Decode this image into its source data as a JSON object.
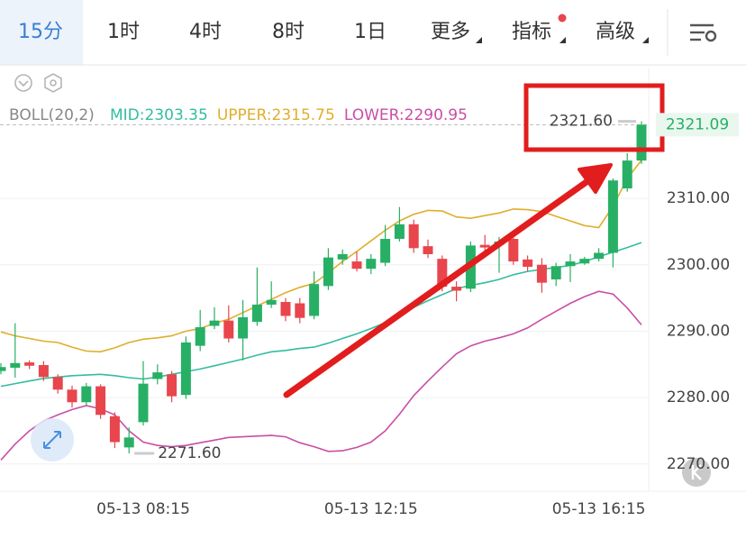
{
  "tabs": [
    "15分",
    "1时",
    "4时",
    "8时",
    "1日",
    "更多",
    "指标",
    "高级"
  ],
  "indicator": "BOLL(20,2)",
  "chart_data": {
    "type": "candlestick",
    "x": [
      null,
      null,
      null,
      null,
      null,
      null,
      null,
      null,
      null,
      null,
      "05-13 08:15",
      null,
      null,
      null,
      null,
      null,
      null,
      null,
      null,
      null,
      null,
      null,
      null,
      null,
      null,
      null,
      "05-13 12:15",
      null,
      null,
      null,
      null,
      null,
      null,
      null,
      null,
      null,
      null,
      null,
      null,
      null,
      null,
      null,
      "05-13 16:15",
      null,
      null,
      null
    ],
    "open": [
      2284.0,
      2284.5,
      2285.3,
      2284.9,
      2283.1,
      2281.2,
      2279.3,
      2281.7,
      2277.2,
      2272.5,
      2276.3,
      2282.8,
      2283.5,
      2280.4,
      2287.8,
      2290.8,
      2291.6,
      2288.9,
      2291.4,
      2294.0,
      2294.4,
      2294.2,
      2292.3,
      2296.8,
      2300.8,
      2300.5,
      2299.4,
      2300.3,
      2303.9,
      2306.1,
      2302.8,
      2300.9,
      2296.7,
      2296.4,
      2303.0,
      2303.0,
      2303.9,
      2300.8,
      2300.0,
      2297.8,
      2299.8,
      2300.2,
      2300.9,
      2301.8,
      2311.5,
      2315.7
    ],
    "high": [
      2285.2,
      2291.2,
      2285.6,
      2285.5,
      2283.5,
      2281.8,
      2282.2,
      2282.0,
      2277.8,
      2275.5,
      2285.5,
      2285.0,
      2284.0,
      2289.2,
      2293.2,
      2293.6,
      2293.9,
      2294.7,
      2299.6,
      2297.5,
      2295.0,
      2295.0,
      2299.0,
      2302.5,
      2302.3,
      2302.0,
      2301.6,
      2306.0,
      2308.7,
      2306.8,
      2303.8,
      2301.4,
      2297.5,
      2303.5,
      2304.5,
      2304.2,
      2304.4,
      2301.4,
      2301.0,
      2300.3,
      2301.6,
      2301.2,
      2302.5,
      2313.0,
      2316.8,
      2321.6
    ],
    "low": [
      2283.5,
      2283.0,
      2284.3,
      2282.5,
      2280.6,
      2278.5,
      2278.8,
      2276.8,
      2272.4,
      2271.6,
      2275.8,
      2282.0,
      2279.3,
      2279.8,
      2287.0,
      2290.3,
      2288.3,
      2285.6,
      2290.8,
      2293.5,
      2291.5,
      2291.2,
      2291.8,
      2296.2,
      2300.0,
      2299.0,
      2298.6,
      2299.8,
      2303.5,
      2301.8,
      2301.0,
      2296.0,
      2294.5,
      2295.9,
      2302.0,
      2298.8,
      2300.0,
      2299.0,
      2295.8,
      2296.8,
      2297.4,
      2300.0,
      2300.5,
      2299.6,
      2311.0,
      2315.2
    ],
    "close": [
      2284.6,
      2285.2,
      2284.8,
      2283.1,
      2281.2,
      2279.3,
      2281.7,
      2277.4,
      2273.3,
      2274.0,
      2282.1,
      2283.8,
      2280.2,
      2288.3,
      2290.6,
      2291.6,
      2288.9,
      2292.1,
      2294.0,
      2294.7,
      2292.3,
      2292.0,
      2297.1,
      2301.1,
      2301.6,
      2299.4,
      2300.9,
      2303.9,
      2306.1,
      2302.5,
      2301.6,
      2296.7,
      2296.1,
      2302.9,
      2302.6,
      2303.5,
      2300.5,
      2299.7,
      2297.3,
      2299.8,
      2300.5,
      2300.9,
      2301.8,
      2312.7,
      2315.7,
      2321.09
    ],
    "up_color": "#27b065",
    "down_color": "#e8454c",
    "series": [
      {
        "name": "MID:2303.35",
        "color": "#33bd9f",
        "values": [
          2281.7,
          2282.1,
          2282.5,
          2282.9,
          2283.1,
          2283.3,
          2283.4,
          2283.5,
          2283.3,
          2283.0,
          2282.8,
          2283.1,
          2283.5,
          2283.9,
          2284.3,
          2284.8,
          2285.3,
          2285.8,
          2286.4,
          2286.9,
          2287.1,
          2287.4,
          2287.6,
          2288.2,
          2288.9,
          2289.6,
          2290.4,
          2291.3,
          2292.4,
          2293.6,
          2294.6,
          2295.5,
          2296.4,
          2296.9,
          2297.3,
          2297.8,
          2298.5,
          2299.0,
          2299.3,
          2299.6,
          2299.9,
          2300.5,
          2301.2,
          2301.9,
          2302.6,
          2303.35
        ]
      },
      {
        "name": "UPPER:2315.75",
        "color": "#dfae2b",
        "values": [
          2289.9,
          2289.3,
          2288.9,
          2288.5,
          2288.3,
          2287.6,
          2287.0,
          2286.9,
          2287.5,
          2288.3,
          2288.8,
          2289.0,
          2289.3,
          2290.0,
          2290.4,
          2291.2,
          2291.8,
          2292.8,
          2293.8,
          2294.8,
          2295.8,
          2296.6,
          2297.2,
          2298.8,
          2300.5,
          2302.0,
          2303.6,
          2305.2,
          2306.6,
          2307.6,
          2308.2,
          2308.1,
          2307.2,
          2307.0,
          2307.4,
          2307.8,
          2308.4,
          2308.3,
          2308.0,
          2307.3,
          2306.6,
          2305.9,
          2305.6,
          2308.8,
          2313.0,
          2315.75
        ]
      },
      {
        "name": "LOWER:2290.95",
        "color": "#c94ea6",
        "values": [
          2270.6,
          2273.0,
          2275.0,
          2276.5,
          2277.4,
          2278.2,
          2278.8,
          2278.3,
          2277.4,
          2275.0,
          2273.3,
          2272.8,
          2272.6,
          2272.8,
          2273.2,
          2273.6,
          2274.0,
          2274.1,
          2274.2,
          2274.3,
          2274.1,
          2273.2,
          2272.6,
          2271.9,
          2272.0,
          2272.5,
          2273.3,
          2275.0,
          2277.5,
          2280.3,
          2282.5,
          2284.6,
          2286.6,
          2287.8,
          2288.5,
          2289.0,
          2289.6,
          2290.5,
          2291.8,
          2293.0,
          2294.2,
          2295.2,
          2296.0,
          2295.6,
          2293.5,
          2290.95
        ]
      }
    ],
    "ylim": [
      2265.9,
      2326.3
    ],
    "yticks": [
      {
        "value": 2270,
        "label": "2270.00"
      },
      {
        "value": 2280,
        "label": "2280.00"
      },
      {
        "value": 2290,
        "label": "2290.00"
      },
      {
        "value": 2300,
        "label": "2300.00"
      },
      {
        "value": 2310,
        "label": "2310.00"
      }
    ],
    "grid": true,
    "max_label": {
      "value": 2321.6,
      "label": "2321.60"
    },
    "min_label": {
      "value": 2271.6,
      "label": "2271.60"
    },
    "last_price": 2321.09
  }
}
